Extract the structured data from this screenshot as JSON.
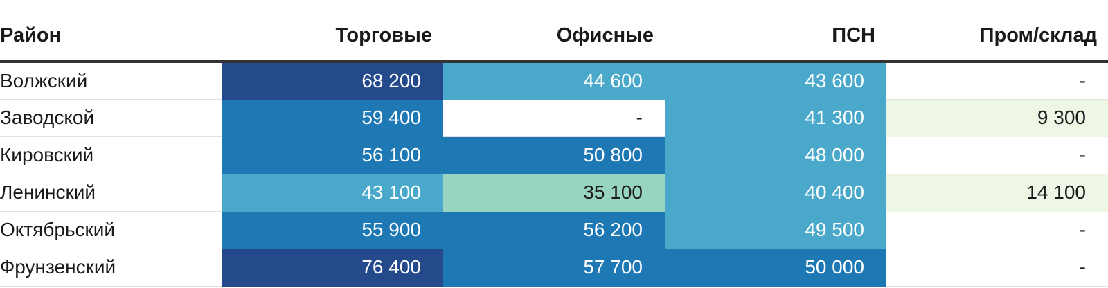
{
  "chart_data": {
    "type": "table",
    "columns": [
      "Район",
      "Торговые",
      "Офисные",
      "ПСН",
      "Пром/склад"
    ],
    "rows": [
      {
        "district": "Волжский",
        "cells": [
          "68 200",
          "44 600",
          "43 600",
          "-"
        ],
        "values": [
          68200,
          44600,
          43600,
          null
        ]
      },
      {
        "district": "Заводской",
        "cells": [
          "59 400",
          "-",
          "41 300",
          "9 300"
        ],
        "values": [
          59400,
          null,
          41300,
          9300
        ]
      },
      {
        "district": "Кировский",
        "cells": [
          "56 100",
          "50 800",
          "48 000",
          "-"
        ],
        "values": [
          56100,
          50800,
          48000,
          null
        ]
      },
      {
        "district": "Ленинский",
        "cells": [
          "43 100",
          "35 100",
          "40 400",
          "14 100"
        ],
        "values": [
          43100,
          35100,
          40400,
          14100
        ]
      },
      {
        "district": "Октябрьский",
        "cells": [
          "55 900",
          "56 200",
          "49 500",
          "-"
        ],
        "values": [
          55900,
          56200,
          49500,
          null
        ]
      },
      {
        "district": "Фрунзенский",
        "cells": [
          "76 400",
          "57 700",
          "50 000",
          "-"
        ],
        "values": [
          76400,
          57700,
          50000,
          null
        ]
      }
    ],
    "color_scale": [
      {
        "min": 0,
        "max": 19999,
        "bg": "#eef7e6",
        "fg": "#1a1a1a"
      },
      {
        "min": 20000,
        "max": 39999,
        "bg": "#98d5c0",
        "fg": "#1a1a1a"
      },
      {
        "min": 40000,
        "max": 49999,
        "bg": "#4aa9cb",
        "fg": "#ffffff"
      },
      {
        "min": 50000,
        "max": 59999,
        "bg": "#1d78b4",
        "fg": "#ffffff"
      },
      {
        "min": 60000,
        "max": 100000,
        "bg": "#254a8b",
        "fg": "#ffffff"
      }
    ],
    "empty_cell": {
      "bg": "#ffffff",
      "fg": "#1a1a1a"
    }
  }
}
